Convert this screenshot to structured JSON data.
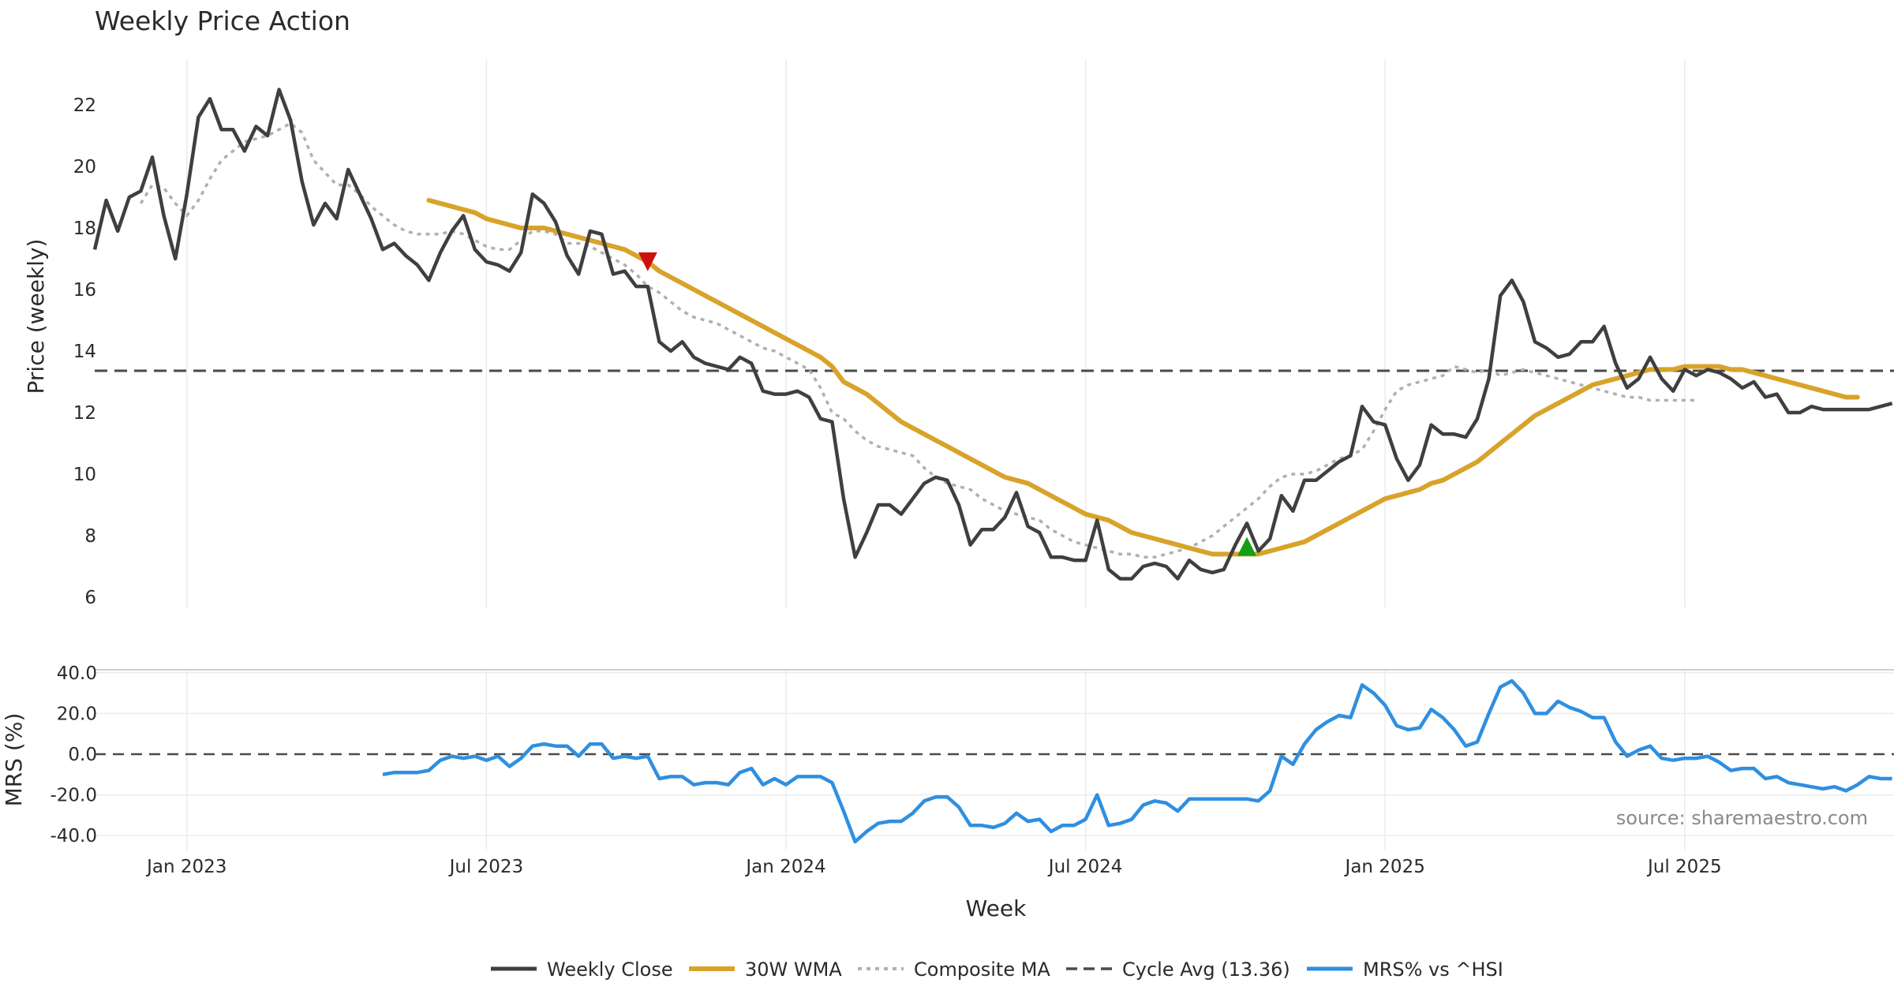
{
  "colors": {
    "close": "#3f3f3f",
    "wma": "#d8a32a",
    "composite": "#b0b0b0",
    "cycle": "#4a4a4a",
    "mrs": "#2f8fe0",
    "sell_marker": "#cc1111",
    "buy_marker": "#14a014",
    "grid": "#ececec"
  },
  "chart_data": [
    {
      "type": "line",
      "title": "Weekly Price Action",
      "xlabel": "",
      "ylabel": "Price (weekly)",
      "ylim": [
        5.7,
        23.8
      ],
      "yticks": [
        6,
        8,
        10,
        12,
        14,
        16,
        18,
        20,
        22
      ],
      "x_start": "2022-11-07",
      "x_step_weeks": 1,
      "series": [
        {
          "name": "Weekly Close",
          "start_index": 0,
          "values": [
            17.3,
            18.9,
            17.9,
            19.0,
            19.2,
            20.3,
            18.4,
            17.0,
            19.1,
            21.6,
            22.2,
            21.2,
            21.2,
            20.5,
            21.3,
            21.0,
            22.5,
            21.5,
            19.5,
            18.1,
            18.8,
            18.3,
            19.9,
            19.1,
            18.3,
            17.3,
            17.5,
            17.1,
            16.8,
            16.3,
            17.2,
            17.9,
            18.4,
            17.3,
            16.9,
            16.8,
            16.6,
            17.2,
            19.1,
            18.8,
            18.2,
            17.1,
            16.5,
            17.9,
            17.8,
            16.5,
            16.6,
            16.1,
            16.1,
            14.3,
            14.0,
            14.3,
            13.8,
            13.6,
            13.5,
            13.4,
            13.8,
            13.6,
            12.7,
            12.6,
            12.6,
            12.7,
            12.5,
            11.8,
            11.7,
            9.2,
            7.3,
            8.1,
            9.0,
            9.0,
            8.7,
            9.2,
            9.7,
            9.9,
            9.8,
            9.0,
            7.7,
            8.2,
            8.2,
            8.6,
            9.4,
            8.3,
            8.1,
            7.3,
            7.3,
            7.2,
            7.2,
            8.5,
            6.9,
            6.6,
            6.6,
            7.0,
            7.1,
            7.0,
            6.6,
            7.2,
            6.9,
            6.8,
            6.9,
            7.7,
            8.4,
            7.5,
            7.9,
            9.3,
            8.8,
            9.8,
            9.8,
            10.1,
            10.4,
            10.6,
            12.2,
            11.7,
            11.6,
            10.5,
            9.8,
            10.3,
            11.6,
            11.3,
            11.3,
            11.2,
            11.8,
            13.1,
            15.8,
            16.3,
            15.6,
            14.3,
            14.1,
            13.8,
            13.9,
            14.3,
            14.3,
            14.8,
            13.6,
            12.8,
            13.1,
            13.8,
            13.1,
            12.7,
            13.4,
            13.2,
            13.4,
            13.3,
            13.1,
            12.8,
            13.0,
            12.5,
            12.6,
            12.0,
            12.0,
            12.2,
            12.1,
            12.1,
            12.1,
            12.1,
            12.1,
            12.2,
            12.3
          ]
        },
        {
          "name": "30W WMA",
          "start_index": 29,
          "values": [
            18.9,
            18.8,
            18.7,
            18.6,
            18.5,
            18.3,
            18.2,
            18.1,
            18.0,
            18.0,
            18.0,
            17.9,
            17.8,
            17.7,
            17.6,
            17.5,
            17.4,
            17.3,
            17.1,
            16.9,
            16.6,
            16.4,
            16.2,
            16.0,
            15.8,
            15.6,
            15.4,
            15.2,
            15.0,
            14.8,
            14.6,
            14.4,
            14.2,
            14.0,
            13.8,
            13.5,
            13.0,
            12.8,
            12.6,
            12.3,
            12.0,
            11.7,
            11.5,
            11.3,
            11.1,
            10.9,
            10.7,
            10.5,
            10.3,
            10.1,
            9.9,
            9.8,
            9.7,
            9.5,
            9.3,
            9.1,
            8.9,
            8.7,
            8.6,
            8.5,
            8.3,
            8.1,
            8.0,
            7.9,
            7.8,
            7.7,
            7.6,
            7.5,
            7.4,
            7.4,
            7.4,
            7.4,
            7.4,
            7.5,
            7.6,
            7.7,
            7.8,
            8.0,
            8.2,
            8.4,
            8.6,
            8.8,
            9.0,
            9.2,
            9.3,
            9.4,
            9.5,
            9.7,
            9.8,
            10.0,
            10.2,
            10.4,
            10.7,
            11.0,
            11.3,
            11.6,
            11.9,
            12.1,
            12.3,
            12.5,
            12.7,
            12.9,
            13.0,
            13.1,
            13.2,
            13.3,
            13.4,
            13.4,
            13.4,
            13.5,
            13.5,
            13.5,
            13.5,
            13.4,
            13.4,
            13.3,
            13.2,
            13.1,
            13.0,
            12.9,
            12.8,
            12.7,
            12.6,
            12.5,
            12.5
          ]
        },
        {
          "name": "Composite MA",
          "start_index": 4,
          "values": [
            18.8,
            19.4,
            19.3,
            18.8,
            18.4,
            18.9,
            19.6,
            20.2,
            20.5,
            20.8,
            20.9,
            21.0,
            21.2,
            21.4,
            21.1,
            20.2,
            19.8,
            19.4,
            19.4,
            19.1,
            18.7,
            18.4,
            18.1,
            17.9,
            17.8,
            17.8,
            17.8,
            17.9,
            17.8,
            17.6,
            17.4,
            17.3,
            17.3,
            17.6,
            17.9,
            17.9,
            17.8,
            17.5,
            17.5,
            17.4,
            17.2,
            17.0,
            16.8,
            16.5,
            16.1,
            15.9,
            15.6,
            15.3,
            15.1,
            15.0,
            14.9,
            14.7,
            14.5,
            14.3,
            14.1,
            14.0,
            13.8,
            13.6,
            13.4,
            12.8,
            12.0,
            11.8,
            11.4,
            11.1,
            10.9,
            10.8,
            10.7,
            10.6,
            10.2,
            9.9,
            9.7,
            9.6,
            9.5,
            9.2,
            9.0,
            8.8,
            8.7,
            8.6,
            8.5,
            8.2,
            8.0,
            7.8,
            7.7,
            7.6,
            7.5,
            7.4,
            7.4,
            7.3,
            7.3,
            7.4,
            7.5,
            7.6,
            7.8,
            8.0,
            8.3,
            8.6,
            8.9,
            9.2,
            9.6,
            9.9,
            10.0,
            10.0,
            10.1,
            10.3,
            10.5,
            10.6,
            10.8,
            11.4,
            12.1,
            12.7,
            12.9,
            13.0,
            13.1,
            13.2,
            13.5,
            13.4,
            13.3,
            13.4,
            13.2,
            13.3,
            13.4,
            13.3,
            13.2,
            13.1,
            13.0,
            12.9,
            12.8,
            12.7,
            12.6,
            12.5,
            12.5,
            12.4,
            12.4,
            12.4,
            12.4,
            12.4
          ]
        },
        {
          "name": "Cycle Avg (13.36)",
          "value": 13.36
        }
      ],
      "markers": [
        {
          "type": "sell",
          "index": 48,
          "value": 16.9
        },
        {
          "type": "buy",
          "index": 100,
          "value": 7.65
        }
      ]
    },
    {
      "type": "line",
      "title": "",
      "xlabel": "Week",
      "ylabel": "MRS (%)",
      "ylim": [
        -45,
        42
      ],
      "yticks": [
        "-40.0",
        "-20.0",
        "0.0",
        "20.0",
        "40.0"
      ],
      "ytick_values": [
        -40,
        -20,
        0,
        20,
        40
      ],
      "xticks": [
        "Jan 2023",
        "Jul 2023",
        "Jan 2024",
        "Jul 2024",
        "Jan 2025",
        "Jul 2025"
      ],
      "xtick_indices": [
        8,
        34,
        60,
        86,
        112,
        138
      ],
      "series": [
        {
          "name": "MRS% vs ^HSI",
          "start_index": 25,
          "values": [
            -10,
            -9,
            -9,
            -9,
            -8,
            -3,
            -1,
            -2,
            -1,
            -3,
            -1,
            -6,
            -2,
            4,
            5,
            4,
            4,
            -1,
            5,
            5,
            -2,
            -1,
            -2,
            -1,
            -12,
            -11,
            -11,
            -15,
            -14,
            -14,
            -15,
            -9,
            -7,
            -15,
            -12,
            -15,
            -11,
            -11,
            -11,
            -14,
            -28,
            -43,
            -38,
            -34,
            -33,
            -33,
            -29,
            -23,
            -21,
            -21,
            -26,
            -35,
            -35,
            -36,
            -34,
            -29,
            -33,
            -32,
            -38,
            -35,
            -35,
            -32,
            -20,
            -35,
            -34,
            -32,
            -25,
            -23,
            -24,
            -28,
            -22,
            -22,
            -22,
            -22,
            -22,
            -22,
            -23,
            -18,
            -1,
            -5,
            5,
            12,
            16,
            19,
            18,
            34,
            30,
            24,
            14,
            12,
            13,
            22,
            18,
            12,
            4,
            6,
            20,
            33,
            36,
            30,
            20,
            20,
            26,
            23,
            21,
            18,
            18,
            6,
            -1,
            2,
            4,
            -2,
            -3,
            -2,
            -2,
            -1,
            -4,
            -8,
            -7,
            -7,
            -12,
            -11,
            -14,
            -15,
            -16,
            -17,
            -16,
            -18,
            -15,
            -11,
            -12,
            -12
          ]
        },
        {
          "name": "zero",
          "value": 0
        }
      ]
    }
  ],
  "legend": {
    "items": [
      "Weekly Close",
      "30W WMA",
      "Composite MA",
      "Cycle Avg (13.36)",
      "MRS% vs ^HSI"
    ]
  },
  "source": "source: sharemaestro.com"
}
